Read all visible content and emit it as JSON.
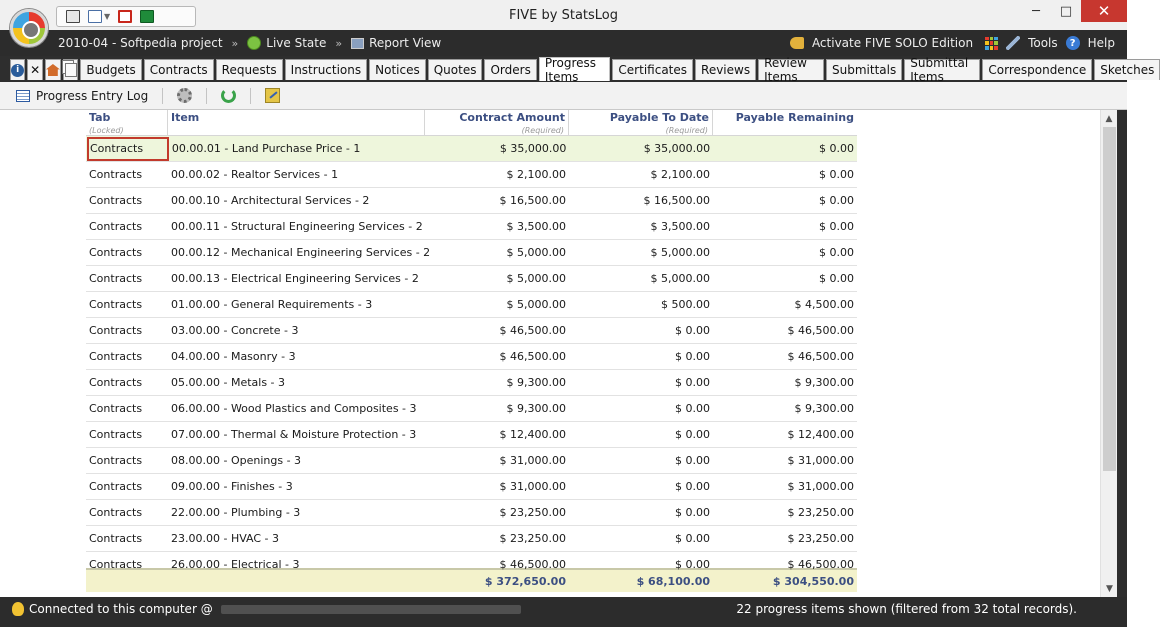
{
  "window": {
    "title": "FIVE by StatsLog",
    "minimize": "─",
    "maximize": "□",
    "close": "✕"
  },
  "breadcrumb": {
    "project": "2010-04 - Softpedia project",
    "sep": "»",
    "state": "Live State",
    "view": "Report View"
  },
  "menu": {
    "activate": "Activate FIVE SOLO Edition",
    "tools": "Tools",
    "help": "Help"
  },
  "tabs": [
    "Budgets",
    "Contracts",
    "Requests",
    "Instructions",
    "Notices",
    "Quotes",
    "Orders",
    "Progress Items",
    "Certificates",
    "Reviews",
    "Review Items",
    "Submittals",
    "Submittal Items",
    "Correspondence",
    "Sketches"
  ],
  "active_tab": "Progress Items",
  "toolbar": {
    "log_label": "Progress Entry Log"
  },
  "table": {
    "headers": {
      "tab": "Tab",
      "tab_sub": "(Locked)",
      "item": "Item",
      "contract_amount": "Contract Amount",
      "contract_amount_sub": "(Required)",
      "payable_to_date": "Payable To Date",
      "payable_to_date_sub": "(Required)",
      "payable_remaining": "Payable Remaining"
    },
    "rows": [
      {
        "tab": "Contracts",
        "item": "00.00.01 - Land Purchase Price - 1",
        "ca": "$ 35,000.00",
        "ptd": "$ 35,000.00",
        "pr": "$ 0.00"
      },
      {
        "tab": "Contracts",
        "item": "00.00.02 - Realtor Services - 1",
        "ca": "$ 2,100.00",
        "ptd": "$ 2,100.00",
        "pr": "$ 0.00"
      },
      {
        "tab": "Contracts",
        "item": "00.00.10 - Architectural Services - 2",
        "ca": "$ 16,500.00",
        "ptd": "$ 16,500.00",
        "pr": "$ 0.00"
      },
      {
        "tab": "Contracts",
        "item": "00.00.11 - Structural Engineering Services - 2",
        "ca": "$ 3,500.00",
        "ptd": "$ 3,500.00",
        "pr": "$ 0.00"
      },
      {
        "tab": "Contracts",
        "item": "00.00.12 - Mechanical Engineering Services - 2",
        "ca": "$ 5,000.00",
        "ptd": "$ 5,000.00",
        "pr": "$ 0.00"
      },
      {
        "tab": "Contracts",
        "item": "00.00.13 - Electrical Engineering Services - 2",
        "ca": "$ 5,000.00",
        "ptd": "$ 5,000.00",
        "pr": "$ 0.00"
      },
      {
        "tab": "Contracts",
        "item": "01.00.00 - General Requirements - 3",
        "ca": "$ 5,000.00",
        "ptd": "$ 500.00",
        "pr": "$ 4,500.00"
      },
      {
        "tab": "Contracts",
        "item": "03.00.00 - Concrete - 3",
        "ca": "$ 46,500.00",
        "ptd": "$ 0.00",
        "pr": "$ 46,500.00"
      },
      {
        "tab": "Contracts",
        "item": "04.00.00 - Masonry - 3",
        "ca": "$ 46,500.00",
        "ptd": "$ 0.00",
        "pr": "$ 46,500.00"
      },
      {
        "tab": "Contracts",
        "item": "05.00.00 - Metals - 3",
        "ca": "$ 9,300.00",
        "ptd": "$ 0.00",
        "pr": "$ 9,300.00"
      },
      {
        "tab": "Contracts",
        "item": "06.00.00 - Wood Plastics and Composites - 3",
        "ca": "$ 9,300.00",
        "ptd": "$ 0.00",
        "pr": "$ 9,300.00"
      },
      {
        "tab": "Contracts",
        "item": "07.00.00 - Thermal & Moisture Protection - 3",
        "ca": "$ 12,400.00",
        "ptd": "$ 0.00",
        "pr": "$ 12,400.00"
      },
      {
        "tab": "Contracts",
        "item": "08.00.00 - Openings - 3",
        "ca": "$ 31,000.00",
        "ptd": "$ 0.00",
        "pr": "$ 31,000.00"
      },
      {
        "tab": "Contracts",
        "item": "09.00.00 - Finishes - 3",
        "ca": "$ 31,000.00",
        "ptd": "$ 0.00",
        "pr": "$ 31,000.00"
      },
      {
        "tab": "Contracts",
        "item": "22.00.00 - Plumbing - 3",
        "ca": "$ 23,250.00",
        "ptd": "$ 0.00",
        "pr": "$ 23,250.00"
      },
      {
        "tab": "Contracts",
        "item": "23.00.00 - HVAC - 3",
        "ca": "$ 23,250.00",
        "ptd": "$ 0.00",
        "pr": "$ 23,250.00"
      },
      {
        "tab": "Contracts",
        "item": "26.00.00 - Electrical - 3",
        "ca": "$ 46,500.00",
        "ptd": "$ 0.00",
        "pr": "$ 46,500.00"
      }
    ],
    "totals": {
      "ca": "$ 372,650.00",
      "ptd": "$ 68,100.00",
      "pr": "$ 304,550.00"
    }
  },
  "status": {
    "left": "Connected to this computer @",
    "right": "22 progress items shown (filtered from 32 total records)."
  },
  "colors": {
    "selected_row": "#eef6dc",
    "totals_bg": "#f3f2cb",
    "header_text": "#3c4f82",
    "close_button": "#c7372f"
  }
}
